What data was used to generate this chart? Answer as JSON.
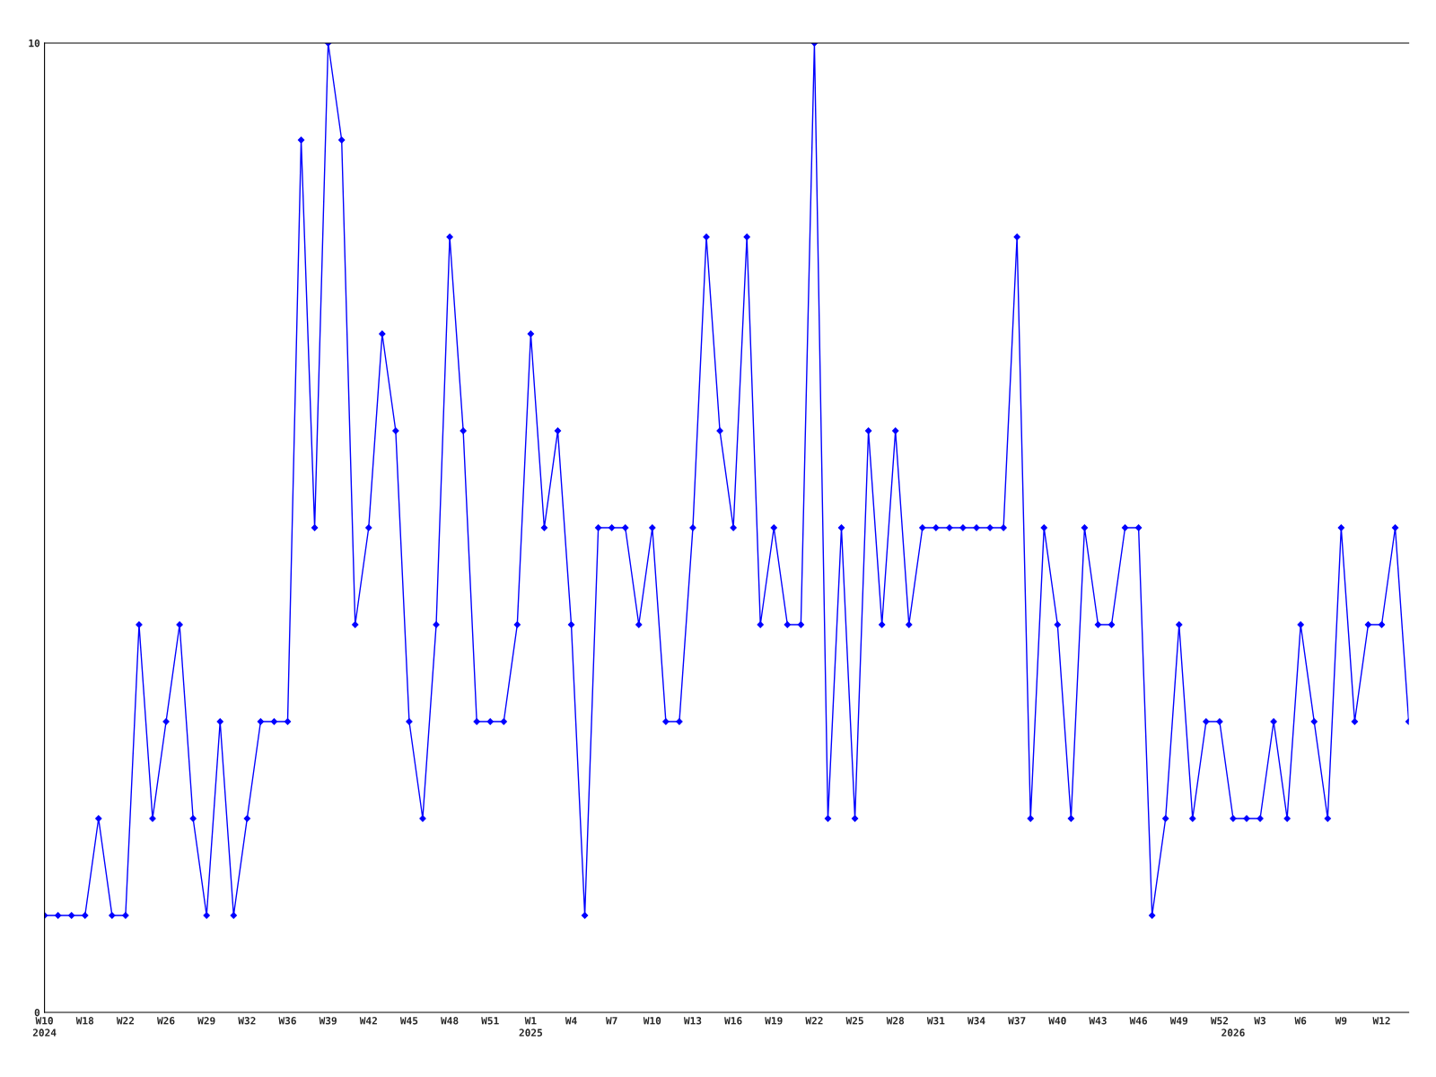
{
  "chart_data": {
    "type": "line",
    "categories": [
      "W10\n2024",
      null,
      null,
      "W18",
      null,
      null,
      "W22",
      null,
      null,
      "W26",
      null,
      null,
      "W29",
      null,
      null,
      "W32",
      null,
      null,
      "W36",
      null,
      null,
      "W39",
      null,
      null,
      "W42",
      null,
      null,
      "W45",
      null,
      null,
      "W48",
      null,
      null,
      "W51",
      null,
      null,
      "W1\n2025",
      null,
      null,
      "W4",
      null,
      null,
      "W7",
      null,
      null,
      "W10",
      null,
      null,
      "W13",
      null,
      null,
      "W16",
      null,
      null,
      "W19",
      null,
      null,
      "W22",
      null,
      null,
      "W25",
      null,
      null,
      "W28",
      null,
      null,
      "W31",
      null,
      null,
      "W34",
      null,
      null,
      "W37",
      null,
      null,
      "W40",
      null,
      null,
      "W43",
      null,
      null,
      "W46",
      null,
      null,
      "W49",
      null,
      null,
      "W52",
      "\n2026",
      null,
      "W3",
      null,
      null,
      "W6",
      null,
      null,
      "W9",
      null,
      null,
      "W12",
      null,
      null
    ],
    "series": [
      {
        "color": "#0000ff",
        "values": [
          1,
          1,
          1,
          1,
          2,
          1,
          1,
          4,
          2,
          3,
          4,
          2,
          1,
          3,
          1,
          2,
          3,
          3,
          3,
          9,
          5,
          10,
          9,
          4,
          5,
          7,
          6,
          3,
          2,
          4,
          8,
          6,
          3,
          3,
          3,
          4,
          7,
          5,
          6,
          4,
          1,
          5,
          5,
          5,
          4,
          5,
          3,
          3,
          5,
          8,
          6,
          5,
          8,
          4,
          5,
          4,
          4,
          10,
          2,
          5,
          2,
          6,
          4,
          6,
          4,
          5,
          5,
          5,
          5,
          5,
          5,
          5,
          8,
          2,
          5,
          4,
          2,
          5,
          4,
          4,
          5,
          5,
          1,
          2,
          4,
          2,
          3,
          3,
          2,
          2,
          2,
          3,
          2,
          4,
          3,
          2,
          5,
          3,
          4,
          4,
          5,
          3
        ]
      }
    ],
    "ylim": [
      0,
      10
    ],
    "yticks": [
      0,
      10
    ],
    "marker": "diamond",
    "line_style": "solid",
    "grid": false,
    "legend": false
  }
}
